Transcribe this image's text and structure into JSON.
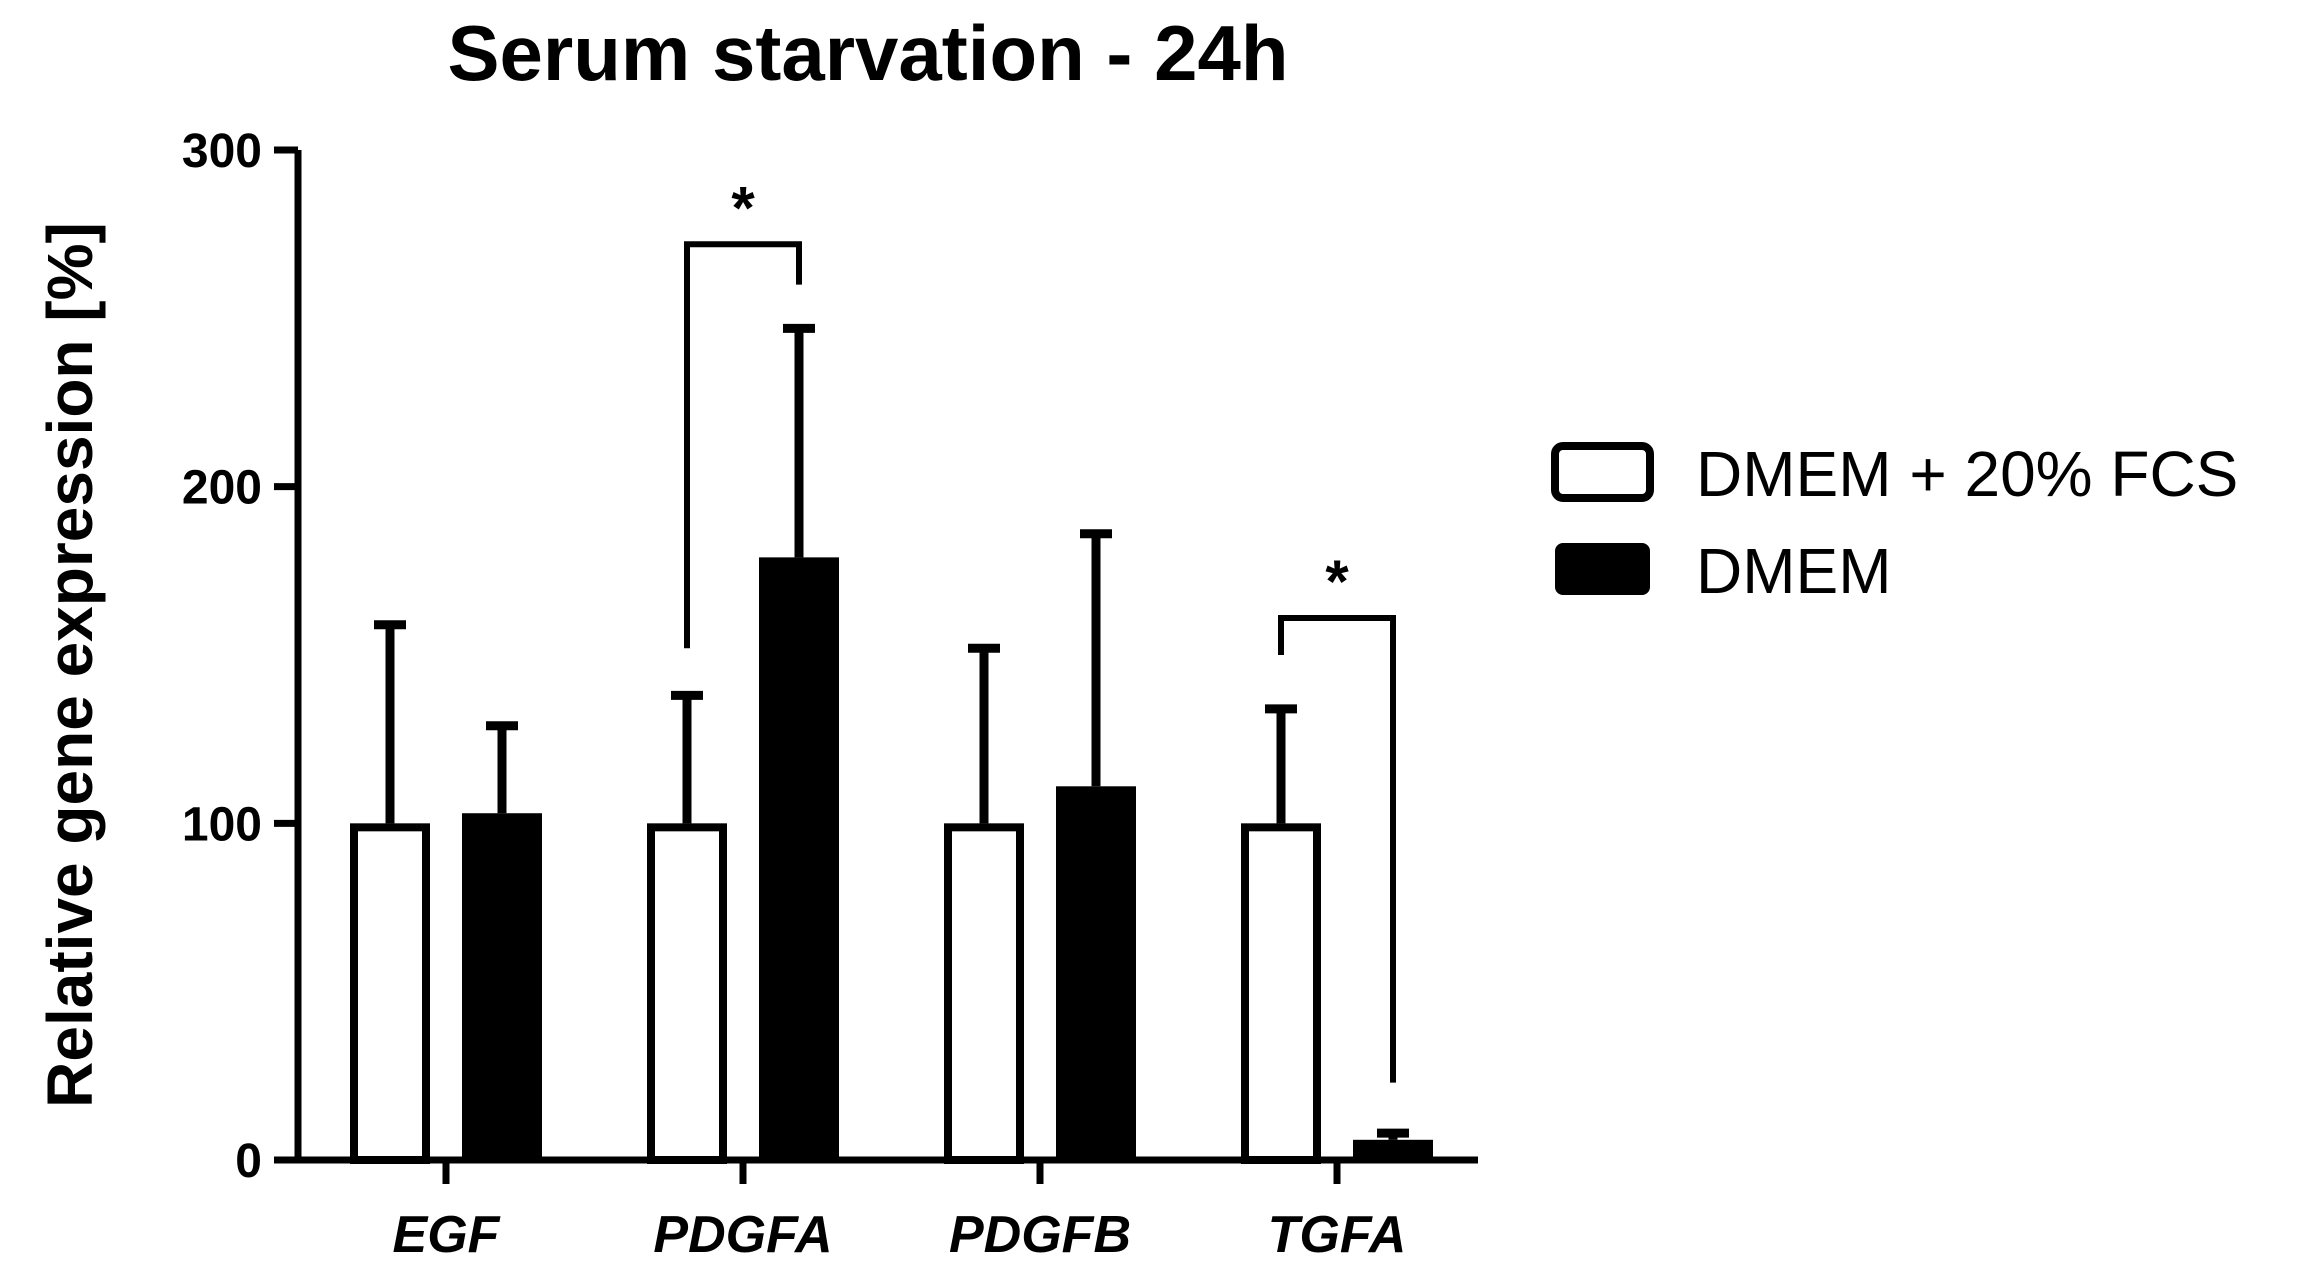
{
  "chart_data": {
    "type": "bar",
    "title": "Serum starvation - 24h",
    "xlabel": "",
    "ylabel": "Relative gene expression [%]",
    "ylim": [
      0,
      300
    ],
    "yticks": [
      0,
      100,
      200,
      300
    ],
    "grid": false,
    "legend_position": "right",
    "categories": [
      "EGF",
      "PDGFA",
      "PDGFB",
      "TGFA"
    ],
    "series": [
      {
        "name": "DMEM + 20% FCS",
        "fill": "#ffffff",
        "stroke": "#000000",
        "values": [
          100,
          100,
          100,
          100
        ],
        "errors": [
          59,
          38,
          52,
          34
        ]
      },
      {
        "name": "DMEM",
        "fill": "#000000",
        "stroke": "#000000",
        "values": [
          103,
          179,
          111,
          6
        ],
        "errors": [
          26,
          68,
          75,
          2
        ]
      }
    ],
    "significance": [
      {
        "category_index": 1,
        "label": "*",
        "bracket_y": 272,
        "left_start": 152,
        "right_start": 260
      },
      {
        "category_index": 3,
        "label": "*",
        "bracket_y": 161,
        "left_start": 150,
        "right_start": 23
      }
    ]
  }
}
